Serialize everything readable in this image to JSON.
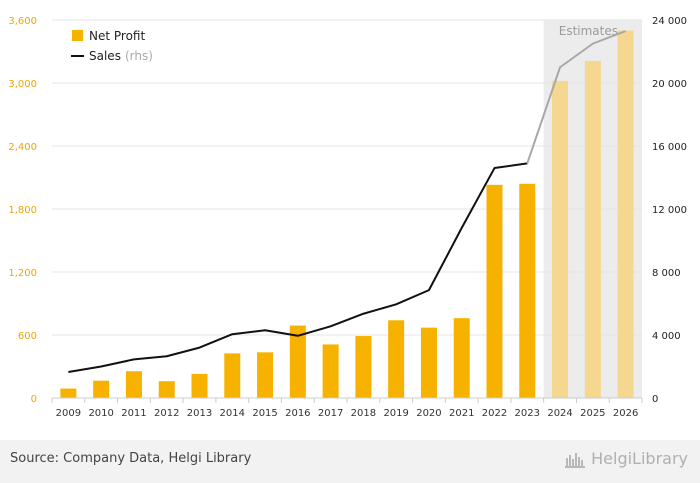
{
  "chart_data": {
    "type": "bar+line",
    "categories": [
      "2009",
      "2010",
      "2011",
      "2012",
      "2013",
      "2014",
      "2015",
      "2016",
      "2017",
      "2018",
      "2019",
      "2020",
      "2021",
      "2022",
      "2023",
      "2024",
      "2025",
      "2026"
    ],
    "series": [
      {
        "name": "Net Profit",
        "type": "bar",
        "axis": "left",
        "color": "#f7b200",
        "values": [
          90,
          165,
          255,
          160,
          230,
          425,
          435,
          690,
          510,
          590,
          740,
          670,
          760,
          2030,
          2040,
          3020,
          3210,
          3500
        ]
      },
      {
        "name": "Sales",
        "type": "line",
        "axis": "right",
        "color": "#111111",
        "values": [
          1650,
          2000,
          2450,
          2650,
          3200,
          4050,
          4300,
          3950,
          4550,
          5350,
          5950,
          6850,
          10800,
          14600,
          14900,
          21000,
          22500,
          23300
        ]
      }
    ],
    "legend": [
      {
        "label": "Net Profit",
        "sub": ""
      },
      {
        "label": "Sales",
        "sub": "(rhs)"
      }
    ],
    "estimates": {
      "label": "Estimates",
      "from": "2024",
      "to": "2026"
    },
    "y_left": {
      "range": [
        0,
        3600
      ],
      "ticks": [
        "0",
        "600",
        "1,200",
        "1,800",
        "2,400",
        "3,000",
        "3,600"
      ],
      "color": "#f0a500"
    },
    "y_right": {
      "range": [
        0,
        24000
      ],
      "ticks": [
        "0",
        "4 000",
        "8 000",
        "12 000",
        "16 000",
        "20 000",
        "24 000"
      ]
    },
    "grid": true,
    "legend_position": "top-left"
  },
  "footer": {
    "source": "Source: Company Data, Helgi Library",
    "brand": "HelgiLibrary"
  }
}
